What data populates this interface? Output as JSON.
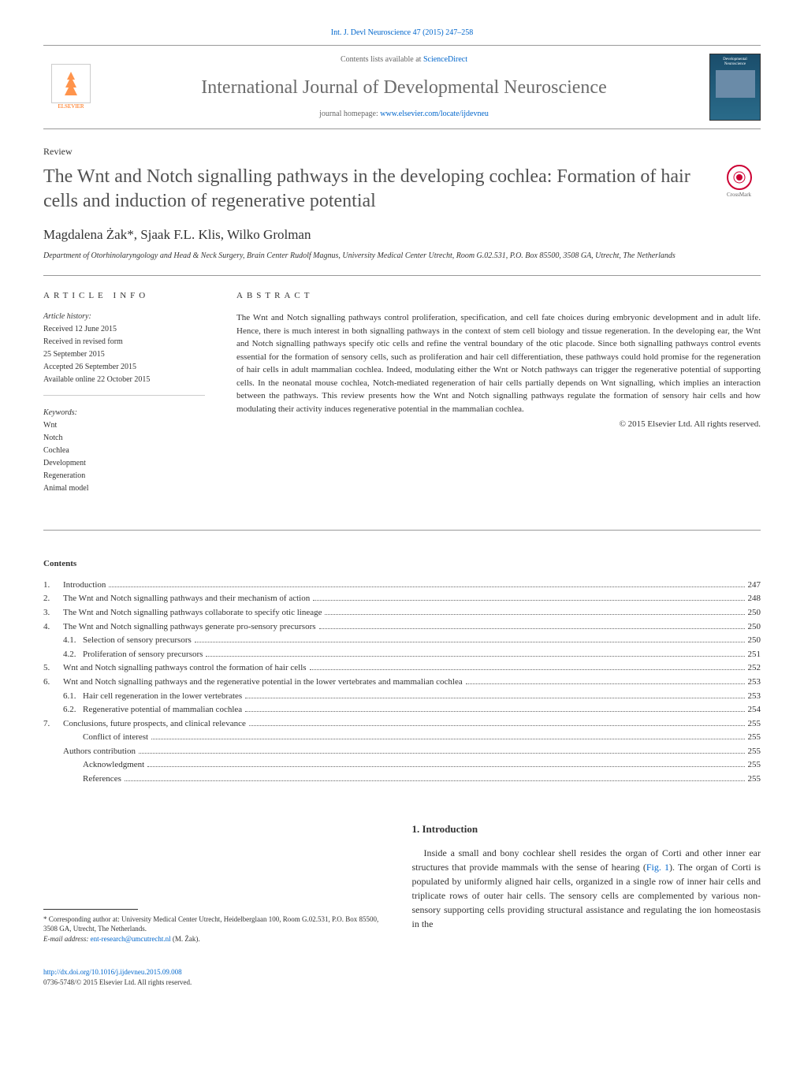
{
  "journal_ref": "Int. J. Devl Neuroscience 47 (2015) 247–258",
  "header": {
    "contents_prefix": "Contents lists available at ",
    "contents_link": "ScienceDirect",
    "journal_title": "International Journal of Developmental Neuroscience",
    "homepage_prefix": "journal homepage: ",
    "homepage_link": "www.elsevier.com/locate/ijdevneu",
    "publisher": "ELSEVIER",
    "cover_text": "Developmental Neuroscience"
  },
  "article": {
    "type": "Review",
    "title": "The Wnt and Notch signalling pathways in the developing cochlea: Formation of hair cells and induction of regenerative potential",
    "crossmark": "CrossMark",
    "authors": "Magdalena Żak*, Sjaak F.L. Klis, Wilko Grolman",
    "affiliation": "Department of Otorhinolaryngology and Head & Neck Surgery, Brain Center Rudolf Magnus, University Medical Center Utrecht, Room G.02.531, P.O. Box 85500, 3508 GA, Utrecht, The Netherlands"
  },
  "info": {
    "heading": "ARTICLE INFO",
    "history_heading": "Article history:",
    "history": [
      "Received 12 June 2015",
      "Received in revised form",
      "25 September 2015",
      "Accepted 26 September 2015",
      "Available online 22 October 2015"
    ],
    "keywords_heading": "Keywords:",
    "keywords": [
      "Wnt",
      "Notch",
      "Cochlea",
      "Development",
      "Regeneration",
      "Animal model"
    ]
  },
  "abstract": {
    "heading": "ABSTRACT",
    "text": "The Wnt and Notch signalling pathways control proliferation, specification, and cell fate choices during embryonic development and in adult life. Hence, there is much interest in both signalling pathways in the context of stem cell biology and tissue regeneration. In the developing ear, the Wnt and Notch signalling pathways specify otic cells and refine the ventral boundary of the otic placode. Since both signalling pathways control events essential for the formation of sensory cells, such as proliferation and hair cell differentiation, these pathways could hold promise for the regeneration of hair cells in adult mammalian cochlea. Indeed, modulating either the Wnt or Notch pathways can trigger the regenerative potential of supporting cells. In the neonatal mouse cochlea, Notch-mediated regeneration of hair cells partially depends on Wnt signalling, which implies an interaction between the pathways. This review presents how the Wnt and Notch signalling pathways regulate the formation of sensory hair cells and how modulating their activity induces regenerative potential in the mammalian cochlea.",
    "copyright": "© 2015 Elsevier Ltd. All rights reserved."
  },
  "contents": {
    "heading": "Contents",
    "items": [
      {
        "num": "1.",
        "text": "Introduction",
        "page": "247",
        "indent": 0
      },
      {
        "num": "2.",
        "text": "The Wnt and Notch signalling pathways and their mechanism of action",
        "page": "248",
        "indent": 0
      },
      {
        "num": "3.",
        "text": "The Wnt and Notch signalling pathways collaborate to specify otic lineage",
        "page": "250",
        "indent": 0
      },
      {
        "num": "4.",
        "text": "The Wnt and Notch signalling pathways generate pro-sensory precursors",
        "page": "250",
        "indent": 0
      },
      {
        "num": "4.1.",
        "text": "Selection of sensory precursors",
        "page": "250",
        "indent": 1
      },
      {
        "num": "4.2.",
        "text": "Proliferation of sensory precursors",
        "page": "251",
        "indent": 1
      },
      {
        "num": "5.",
        "text": "Wnt and Notch signalling pathways control the formation of hair cells",
        "page": "252",
        "indent": 0
      },
      {
        "num": "6.",
        "text": "Wnt and Notch signalling pathways and the regenerative potential in the lower vertebrates and mammalian cochlea",
        "page": "253",
        "indent": 0
      },
      {
        "num": "6.1.",
        "text": "Hair cell regeneration in the lower vertebrates",
        "page": "253",
        "indent": 1
      },
      {
        "num": "6.2.",
        "text": "Regenerative potential of mammalian cochlea",
        "page": "254",
        "indent": 1
      },
      {
        "num": "7.",
        "text": "Conclusions, future prospects, and clinical relevance",
        "page": "255",
        "indent": 0
      },
      {
        "num": "",
        "text": "Conflict of interest",
        "page": "255",
        "indent": 1
      },
      {
        "num": "",
        "text": "Authors contribution",
        "page": "255",
        "indent": 0
      },
      {
        "num": "",
        "text": "Acknowledgment",
        "page": "255",
        "indent": 1
      },
      {
        "num": "",
        "text": "References",
        "page": "255",
        "indent": 1
      }
    ]
  },
  "intro": {
    "heading": "1. Introduction",
    "text_before_link": "Inside a small and bony cochlear shell resides the organ of Corti and other inner ear structures that provide mammals with the sense of hearing (",
    "link": "Fig. 1",
    "text_after_link": "). The organ of Corti is populated by uniformly aligned hair cells, organized in a single row of inner hair cells and triplicate rows of outer hair cells. The sensory cells are complemented by various non-sensory supporting cells providing structural assistance and regulating the ion homeostasis in the"
  },
  "footnote": {
    "corresponding": "* Corresponding author at: University Medical Center Utrecht, Heidelberglaan 100, Room G.02.531, P.O. Box 85500, 3508 GA, Utrecht, The Netherlands.",
    "email_label": "E-mail address: ",
    "email": "ent-research@umcutrecht.nl",
    "email_suffix": " (M. Żak)."
  },
  "doi": {
    "link": "http://dx.doi.org/10.1016/j.ijdevneu.2015.09.008",
    "issn": "0736-5748/© 2015 Elsevier Ltd. All rights reserved."
  },
  "colors": {
    "link": "#0066cc",
    "text": "#333333",
    "title_gray": "#525252",
    "orange": "#ff6600"
  }
}
